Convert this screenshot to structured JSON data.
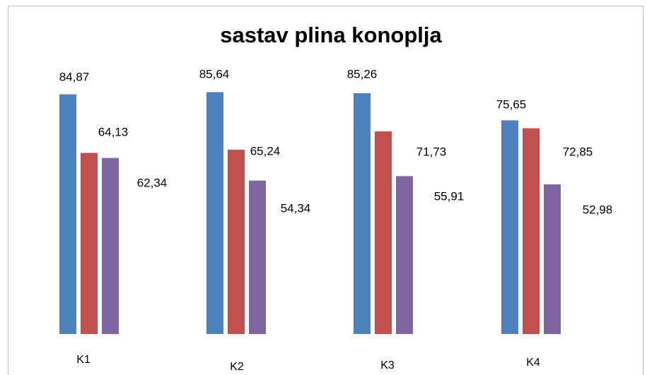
{
  "chart_data": {
    "type": "bar",
    "title": "sastav plina konoplja",
    "categories": [
      "K1",
      "K2",
      "K3",
      "K4"
    ],
    "ylim": [
      0,
      100
    ],
    "series": [
      {
        "color": "#4f81bd",
        "values": [
          84.87,
          85.64,
          85.26,
          75.65
        ],
        "value_labels": [
          "84,87",
          "85,64",
          "85,26",
          "75,65"
        ]
      },
      {
        "color": "#c0504d",
        "values": [
          64.13,
          65.24,
          71.73,
          72.85
        ],
        "value_labels": [
          "64,13",
          "65,24",
          "71,73",
          "72,85"
        ]
      },
      {
        "color": "#8064a2",
        "values": [
          62.34,
          54.34,
          55.91,
          52.98
        ],
        "value_labels": [
          "62,34",
          "54,34",
          "55,91",
          "52,98"
        ]
      }
    ]
  }
}
